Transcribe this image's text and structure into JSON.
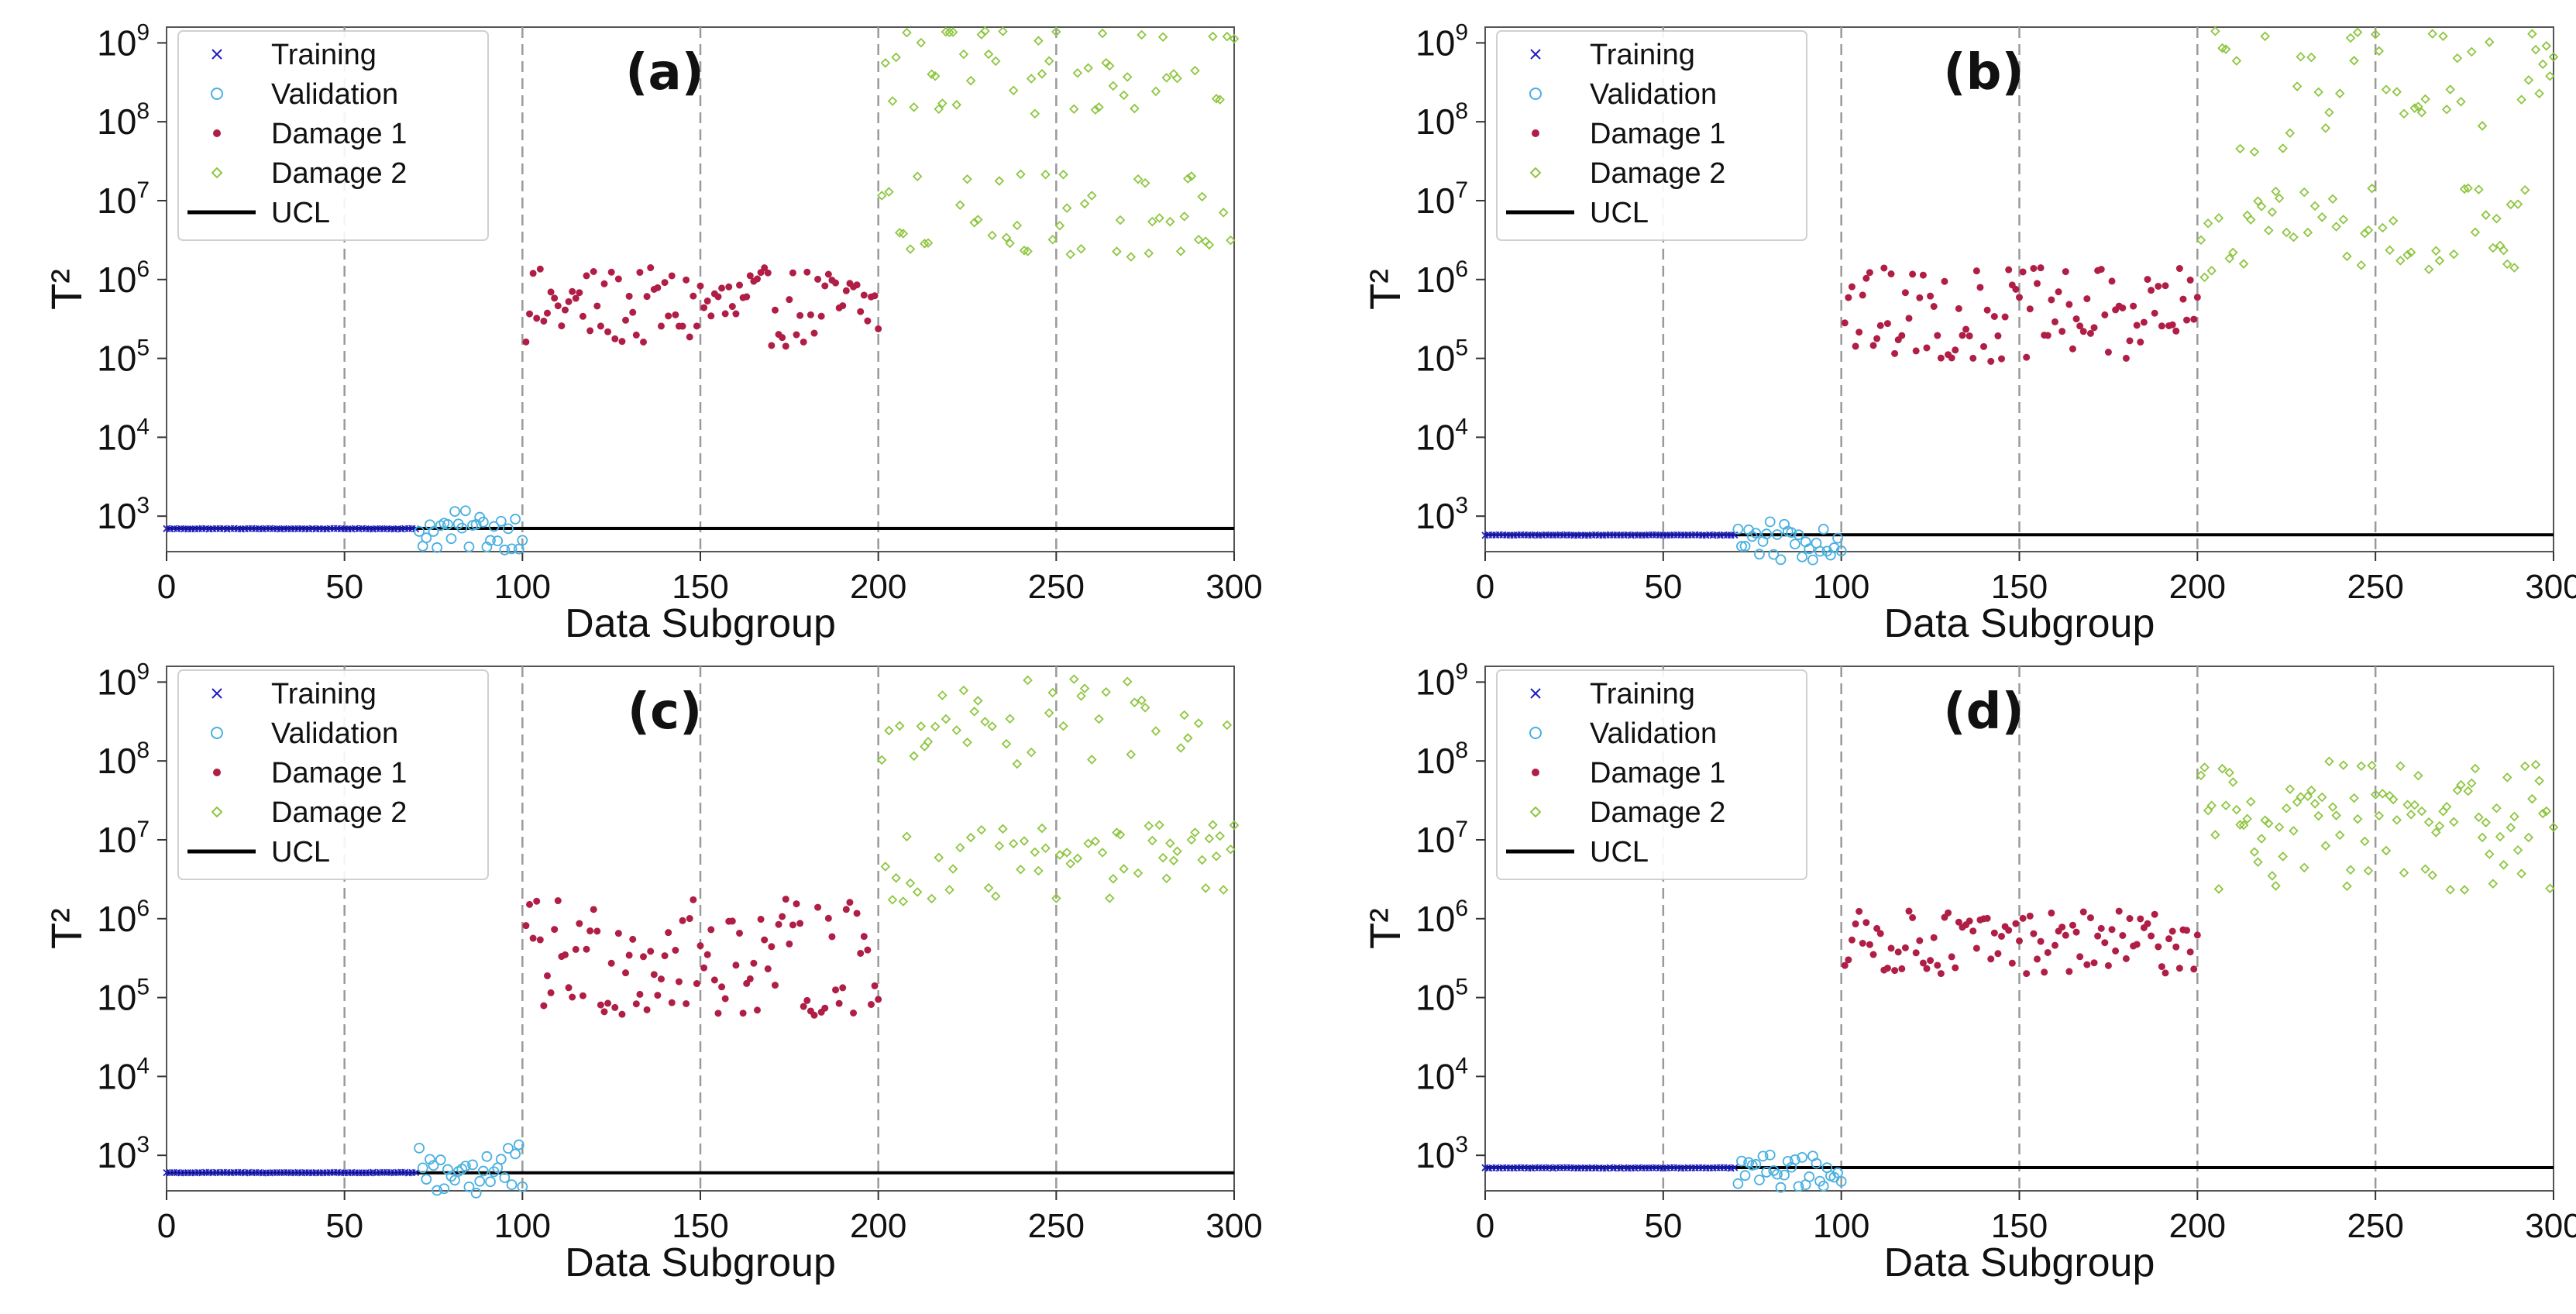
{
  "figure": {
    "description_labels": [
      "(a)",
      "(b)",
      "(c)",
      "(d)"
    ]
  },
  "colors": {
    "training": "#1f1fc0",
    "validation": "#4ab0e0",
    "damage1": "#b01e46",
    "damage2": "#8ec640",
    "ucl": "#000000",
    "vlines": "#9a9a9a"
  },
  "chart_data": [
    {
      "type": "scatter",
      "panel": "(a)",
      "xlabel": "Data Subgroup",
      "ylabel": "T²",
      "yscale": "log",
      "xlim": [
        0,
        300
      ],
      "ylim_log10": [
        2.55,
        9.2
      ],
      "xticks": [
        0,
        50,
        100,
        150,
        200,
        250,
        300
      ],
      "yticks_exp": [
        3,
        4,
        5,
        6,
        7,
        8,
        9
      ],
      "vlines": [
        50,
        100,
        150,
        200,
        250
      ],
      "ucl": 700,
      "legend": [
        "Training",
        "Validation",
        "Damage 1",
        "Damage 2",
        "UCL"
      ],
      "series": [
        {
          "name": "Training",
          "x_range": [
            0,
            70
          ],
          "log10_center": 2.84,
          "log10_spread": 0.02
        },
        {
          "name": "Validation",
          "x_range": [
            70,
            100
          ],
          "log10_center": 2.82,
          "log10_spread": 0.25
        },
        {
          "name": "Damage 1",
          "x_range": [
            100,
            200
          ],
          "log10_center": 5.65,
          "log10_spread": 0.5
        },
        {
          "name": "Damage 2",
          "x_range": [
            200,
            300
          ],
          "groups": [
            {
              "log10_center": 8.65,
              "log10_spread": 0.55
            },
            {
              "log10_center": 6.8,
              "log10_spread": 0.55
            }
          ]
        }
      ]
    },
    {
      "type": "scatter",
      "panel": "(b)",
      "xlabel": "Data Subgroup",
      "ylabel": "T²",
      "yscale": "log",
      "xlim": [
        0,
        300
      ],
      "ylim_log10": [
        2.55,
        9.2
      ],
      "xticks": [
        0,
        50,
        100,
        150,
        200,
        250,
        300
      ],
      "yticks_exp": [
        3,
        4,
        5,
        6,
        7,
        8,
        9
      ],
      "vlines": [
        50,
        100,
        150,
        200,
        250
      ],
      "ucl": 580,
      "legend": [
        "Training",
        "Validation",
        "Damage 1",
        "Damage 2",
        "UCL"
      ],
      "series": [
        {
          "name": "Training",
          "x_range": [
            0,
            70
          ],
          "log10_center": 2.76,
          "log10_spread": 0.02
        },
        {
          "name": "Validation",
          "x_range": [
            70,
            100
          ],
          "log10_center": 2.72,
          "log10_spread": 0.3
        },
        {
          "name": "Damage 1",
          "x_range": [
            100,
            200
          ],
          "log10_center": 5.55,
          "log10_spread": 0.6
        },
        {
          "name": "Damage 2",
          "x_range": [
            200,
            300
          ],
          "groups": [
            {
              "log10_center": 8.4,
              "log10_spread": 0.8
            },
            {
              "log10_center": 6.6,
              "log10_spread": 0.6
            }
          ]
        }
      ]
    },
    {
      "type": "scatter",
      "panel": "(c)",
      "xlabel": "Data Subgroup",
      "ylabel": "T²",
      "yscale": "log",
      "xlim": [
        0,
        300
      ],
      "ylim_log10": [
        2.55,
        9.2
      ],
      "xticks": [
        0,
        50,
        100,
        150,
        200,
        250,
        300
      ],
      "yticks_exp": [
        3,
        4,
        5,
        6,
        7,
        8,
        9
      ],
      "vlines": [
        50,
        100,
        150,
        200,
        250
      ],
      "ucl": 600,
      "legend": [
        "Training",
        "Validation",
        "Damage 1",
        "Damage 2",
        "UCL"
      ],
      "series": [
        {
          "name": "Training",
          "x_range": [
            0,
            70
          ],
          "log10_center": 2.78,
          "log10_spread": 0.02
        },
        {
          "name": "Validation",
          "x_range": [
            70,
            100
          ],
          "log10_center": 2.8,
          "log10_spread": 0.35
        },
        {
          "name": "Damage 1",
          "x_range": [
            100,
            200
          ],
          "log10_center": 5.5,
          "log10_spread": 0.75
        },
        {
          "name": "Damage 2",
          "x_range": [
            200,
            300
          ],
          "groups": [
            {
              "log10_center": 8.5,
              "log10_spread": 0.6
            },
            {
              "log10_center": 6.7,
              "log10_spread": 0.5
            }
          ]
        }
      ]
    },
    {
      "type": "scatter",
      "panel": "(d)",
      "xlabel": "Data Subgroup",
      "ylabel": "T²",
      "yscale": "log",
      "xlim": [
        0,
        300
      ],
      "ylim_log10": [
        2.55,
        9.2
      ],
      "xticks": [
        0,
        50,
        100,
        150,
        200,
        250,
        300
      ],
      "yticks_exp": [
        3,
        4,
        5,
        6,
        7,
        8,
        9
      ],
      "vlines": [
        50,
        100,
        150,
        200,
        250
      ],
      "ucl": 700,
      "legend": [
        "Training",
        "Validation",
        "Damage 1",
        "Damage 2",
        "UCL"
      ],
      "series": [
        {
          "name": "Training",
          "x_range": [
            0,
            70
          ],
          "log10_center": 2.84,
          "log10_spread": 0.02
        },
        {
          "name": "Validation",
          "x_range": [
            70,
            100
          ],
          "log10_center": 2.8,
          "log10_spread": 0.22
        },
        {
          "name": "Damage 1",
          "x_range": [
            100,
            200
          ],
          "log10_center": 5.7,
          "log10_spread": 0.4
        },
        {
          "name": "Damage 2",
          "x_range": [
            200,
            300
          ],
          "groups": [
            {
              "log10_center": 7.6,
              "log10_spread": 0.4
            },
            {
              "log10_center": 6.9,
              "log10_spread": 0.55
            }
          ]
        }
      ]
    }
  ]
}
